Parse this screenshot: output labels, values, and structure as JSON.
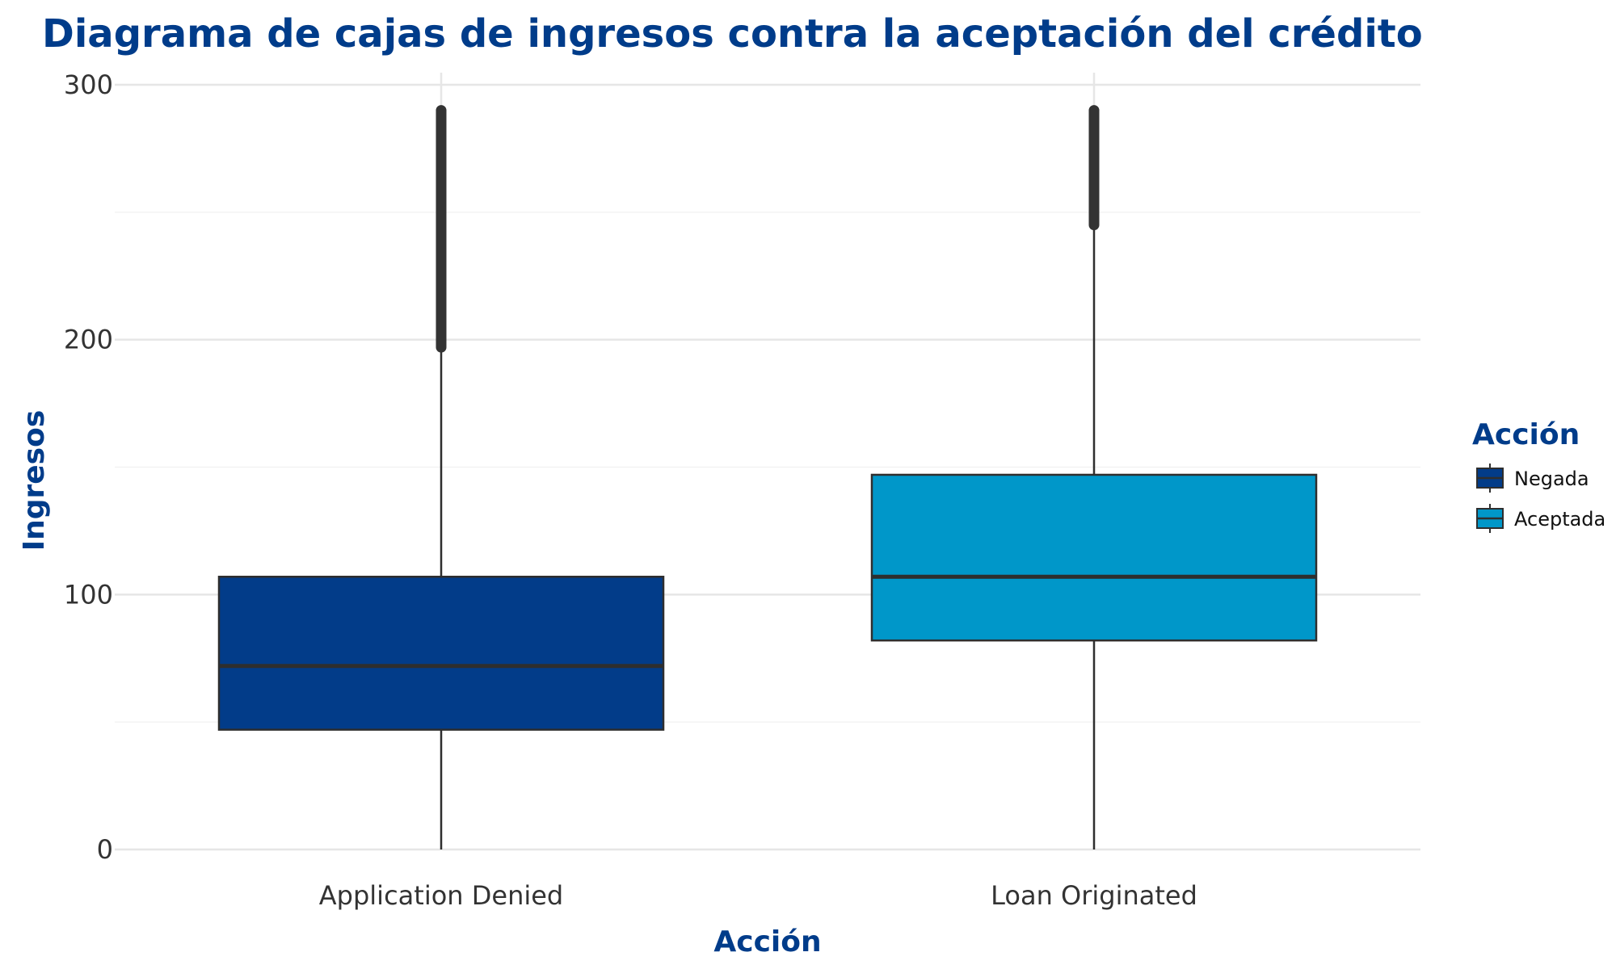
{
  "chart_data": {
    "type": "box",
    "title": "Diagrama de cajas de ingresos contra la aceptación del crédito",
    "xlabel": "Acción",
    "ylabel": "Ingresos",
    "ylim": [
      0,
      300
    ],
    "yticks": [
      0,
      100,
      200,
      300
    ],
    "categories": [
      "Application Denied",
      "Loan Originated"
    ],
    "boxes": [
      {
        "category": "Application Denied",
        "whisker_low": 0,
        "q1": 47,
        "median": 72,
        "q3": 107,
        "whisker_high": 197,
        "outliers_range": [
          197,
          290
        ]
      },
      {
        "category": "Loan Originated",
        "whisker_low": 0,
        "q1": 82,
        "median": 107,
        "q3": 147,
        "whisker_high": 245,
        "outliers_range": [
          245,
          290
        ]
      }
    ],
    "legend": {
      "title": "Acción",
      "placement": "right",
      "entries": [
        {
          "label": "Negada",
          "color": "#023c89"
        },
        {
          "label": "Aceptada",
          "color": "#0097c9"
        }
      ]
    },
    "grid": true,
    "colors": {
      "title": "#003c8a",
      "grid": "#e6e6e6",
      "outline": "#2e2e2e"
    }
  }
}
